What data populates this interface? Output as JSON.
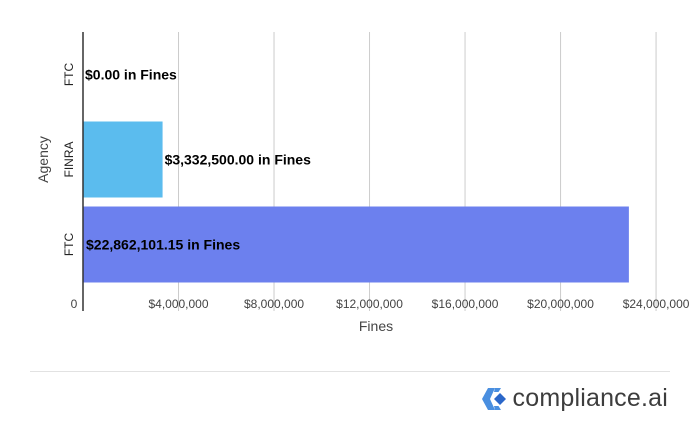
{
  "chart_data": {
    "type": "bar",
    "orientation": "horizontal",
    "categories": [
      "FTC",
      "FINRA",
      "FTC"
    ],
    "values": [
      0.0,
      3332500.0,
      22862101.15
    ],
    "data_labels": [
      "$0.00 in Fines",
      "$3,332,500.00 in Fines",
      "$22,862,101.15 in Fines"
    ],
    "bar_colors": [
      "#5bbcee",
      "#5bbcee",
      "#6c80ee"
    ],
    "xlabel": "Fines",
    "ylabel": "Agency",
    "xlim": [
      0,
      24500000
    ],
    "x_ticks": [
      0,
      4000000,
      8000000,
      12000000,
      16000000,
      20000000,
      24000000
    ],
    "x_tick_labels": [
      "0",
      "$4,000,000",
      "$8,000,000",
      "$12,000,000",
      "$16,000,000",
      "$20,000,000",
      "$24,000,000"
    ],
    "grid": true
  },
  "brand": {
    "name": "compliance.ai",
    "icon": "compliance-ai-logo-icon",
    "colors": {
      "outer": "#4a8fe0",
      "inner": "#2b67c9"
    }
  }
}
